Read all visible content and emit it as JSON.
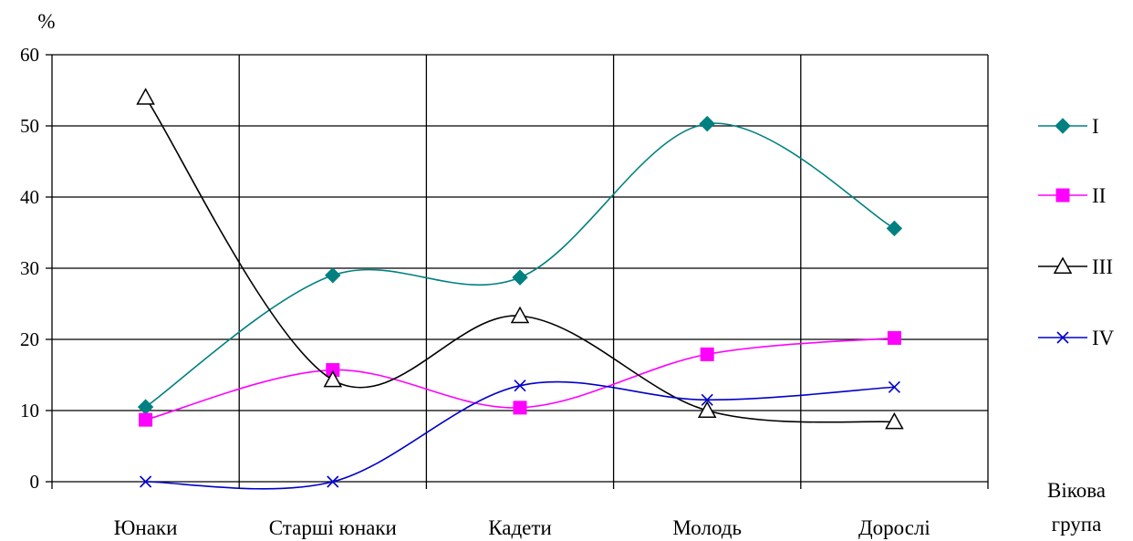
{
  "chart_data": {
    "type": "line",
    "ylabel": "%",
    "xlabel": [
      "Вікова",
      "група"
    ],
    "ylim": [
      0,
      60
    ],
    "yticks": [
      "0",
      "10",
      "20",
      "30",
      "40",
      "50",
      "60"
    ],
    "grid": true,
    "legend_position": "right",
    "categories": [
      "Юнаки",
      "Старші юнаки",
      "Кадети",
      "Молодь",
      "Дорослі"
    ],
    "series": [
      {
        "name": "I",
        "marker": "diamond",
        "color": "#008080",
        "values": [
          10.5,
          29,
          28.7,
          50.3,
          35.6
        ]
      },
      {
        "name": "II",
        "marker": "square",
        "color": "#FF00FF",
        "values": [
          8.7,
          15.7,
          10.4,
          17.9,
          20.2
        ]
      },
      {
        "name": "III",
        "marker": "triangle",
        "color": "#000000",
        "values": [
          54,
          14.3,
          23.3,
          10,
          8.4
        ]
      },
      {
        "name": "IV",
        "marker": "x",
        "color": "#0000CC",
        "values": [
          0,
          0,
          13.5,
          11.5,
          13.3
        ]
      }
    ]
  }
}
